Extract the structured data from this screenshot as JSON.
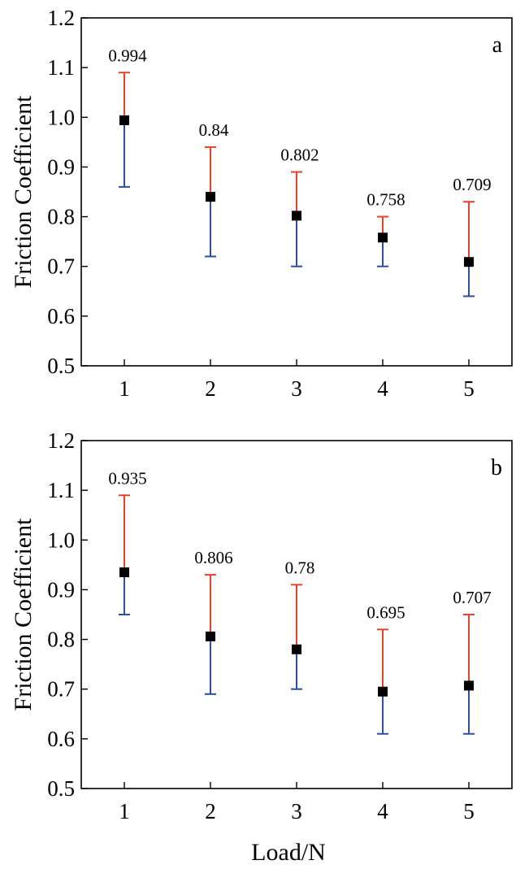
{
  "chart_data": [
    {
      "type": "scatter",
      "panel_label": "a",
      "xlabel": "",
      "ylabel": "Friction Coefficient",
      "xlim": [
        0.5,
        5.5
      ],
      "ylim": [
        0.5,
        1.2
      ],
      "xticks": [
        1,
        2,
        3,
        4,
        5
      ],
      "yticks": [
        0.5,
        0.6,
        0.7,
        0.8,
        0.9,
        1.0,
        1.1,
        1.2
      ],
      "ytick_labels": [
        "0.5",
        "0.6",
        "0.7",
        "0.8",
        "0.9",
        "1.0",
        "1.1",
        "1.2"
      ],
      "x": [
        1,
        2,
        3,
        4,
        5
      ],
      "y": [
        0.994,
        0.84,
        0.802,
        0.758,
        0.709
      ],
      "y_max": [
        1.09,
        0.94,
        0.89,
        0.8,
        0.83
      ],
      "y_min": [
        0.86,
        0.72,
        0.7,
        0.7,
        0.64
      ],
      "labels": [
        "0.994",
        "0.84",
        "0.802",
        "0.758",
        "0.709"
      ],
      "grid": false
    },
    {
      "type": "scatter",
      "panel_label": "b",
      "xlabel": "Load/N",
      "ylabel": "Friction Coefficient",
      "xlim": [
        0.5,
        5.5
      ],
      "ylim": [
        0.5,
        1.2
      ],
      "xticks": [
        1,
        2,
        3,
        4,
        5
      ],
      "yticks": [
        0.5,
        0.6,
        0.7,
        0.8,
        0.9,
        1.0,
        1.1,
        1.2
      ],
      "ytick_labels": [
        "0.5",
        "0.6",
        "0.7",
        "0.8",
        "0.9",
        "1.0",
        "1.1",
        "1.2"
      ],
      "x": [
        1,
        2,
        3,
        4,
        5
      ],
      "y": [
        0.935,
        0.806,
        0.78,
        0.695,
        0.707
      ],
      "y_max": [
        1.09,
        0.93,
        0.91,
        0.82,
        0.85
      ],
      "y_min": [
        0.85,
        0.69,
        0.7,
        0.61,
        0.61
      ],
      "labels": [
        "0.935",
        "0.806",
        "0.78",
        "0.695",
        "0.707"
      ],
      "grid": false
    }
  ],
  "colors": {
    "marker": "#000000",
    "upper_error": "#e8432a",
    "lower_error": "#2c4ea3",
    "axis": "#000000"
  }
}
